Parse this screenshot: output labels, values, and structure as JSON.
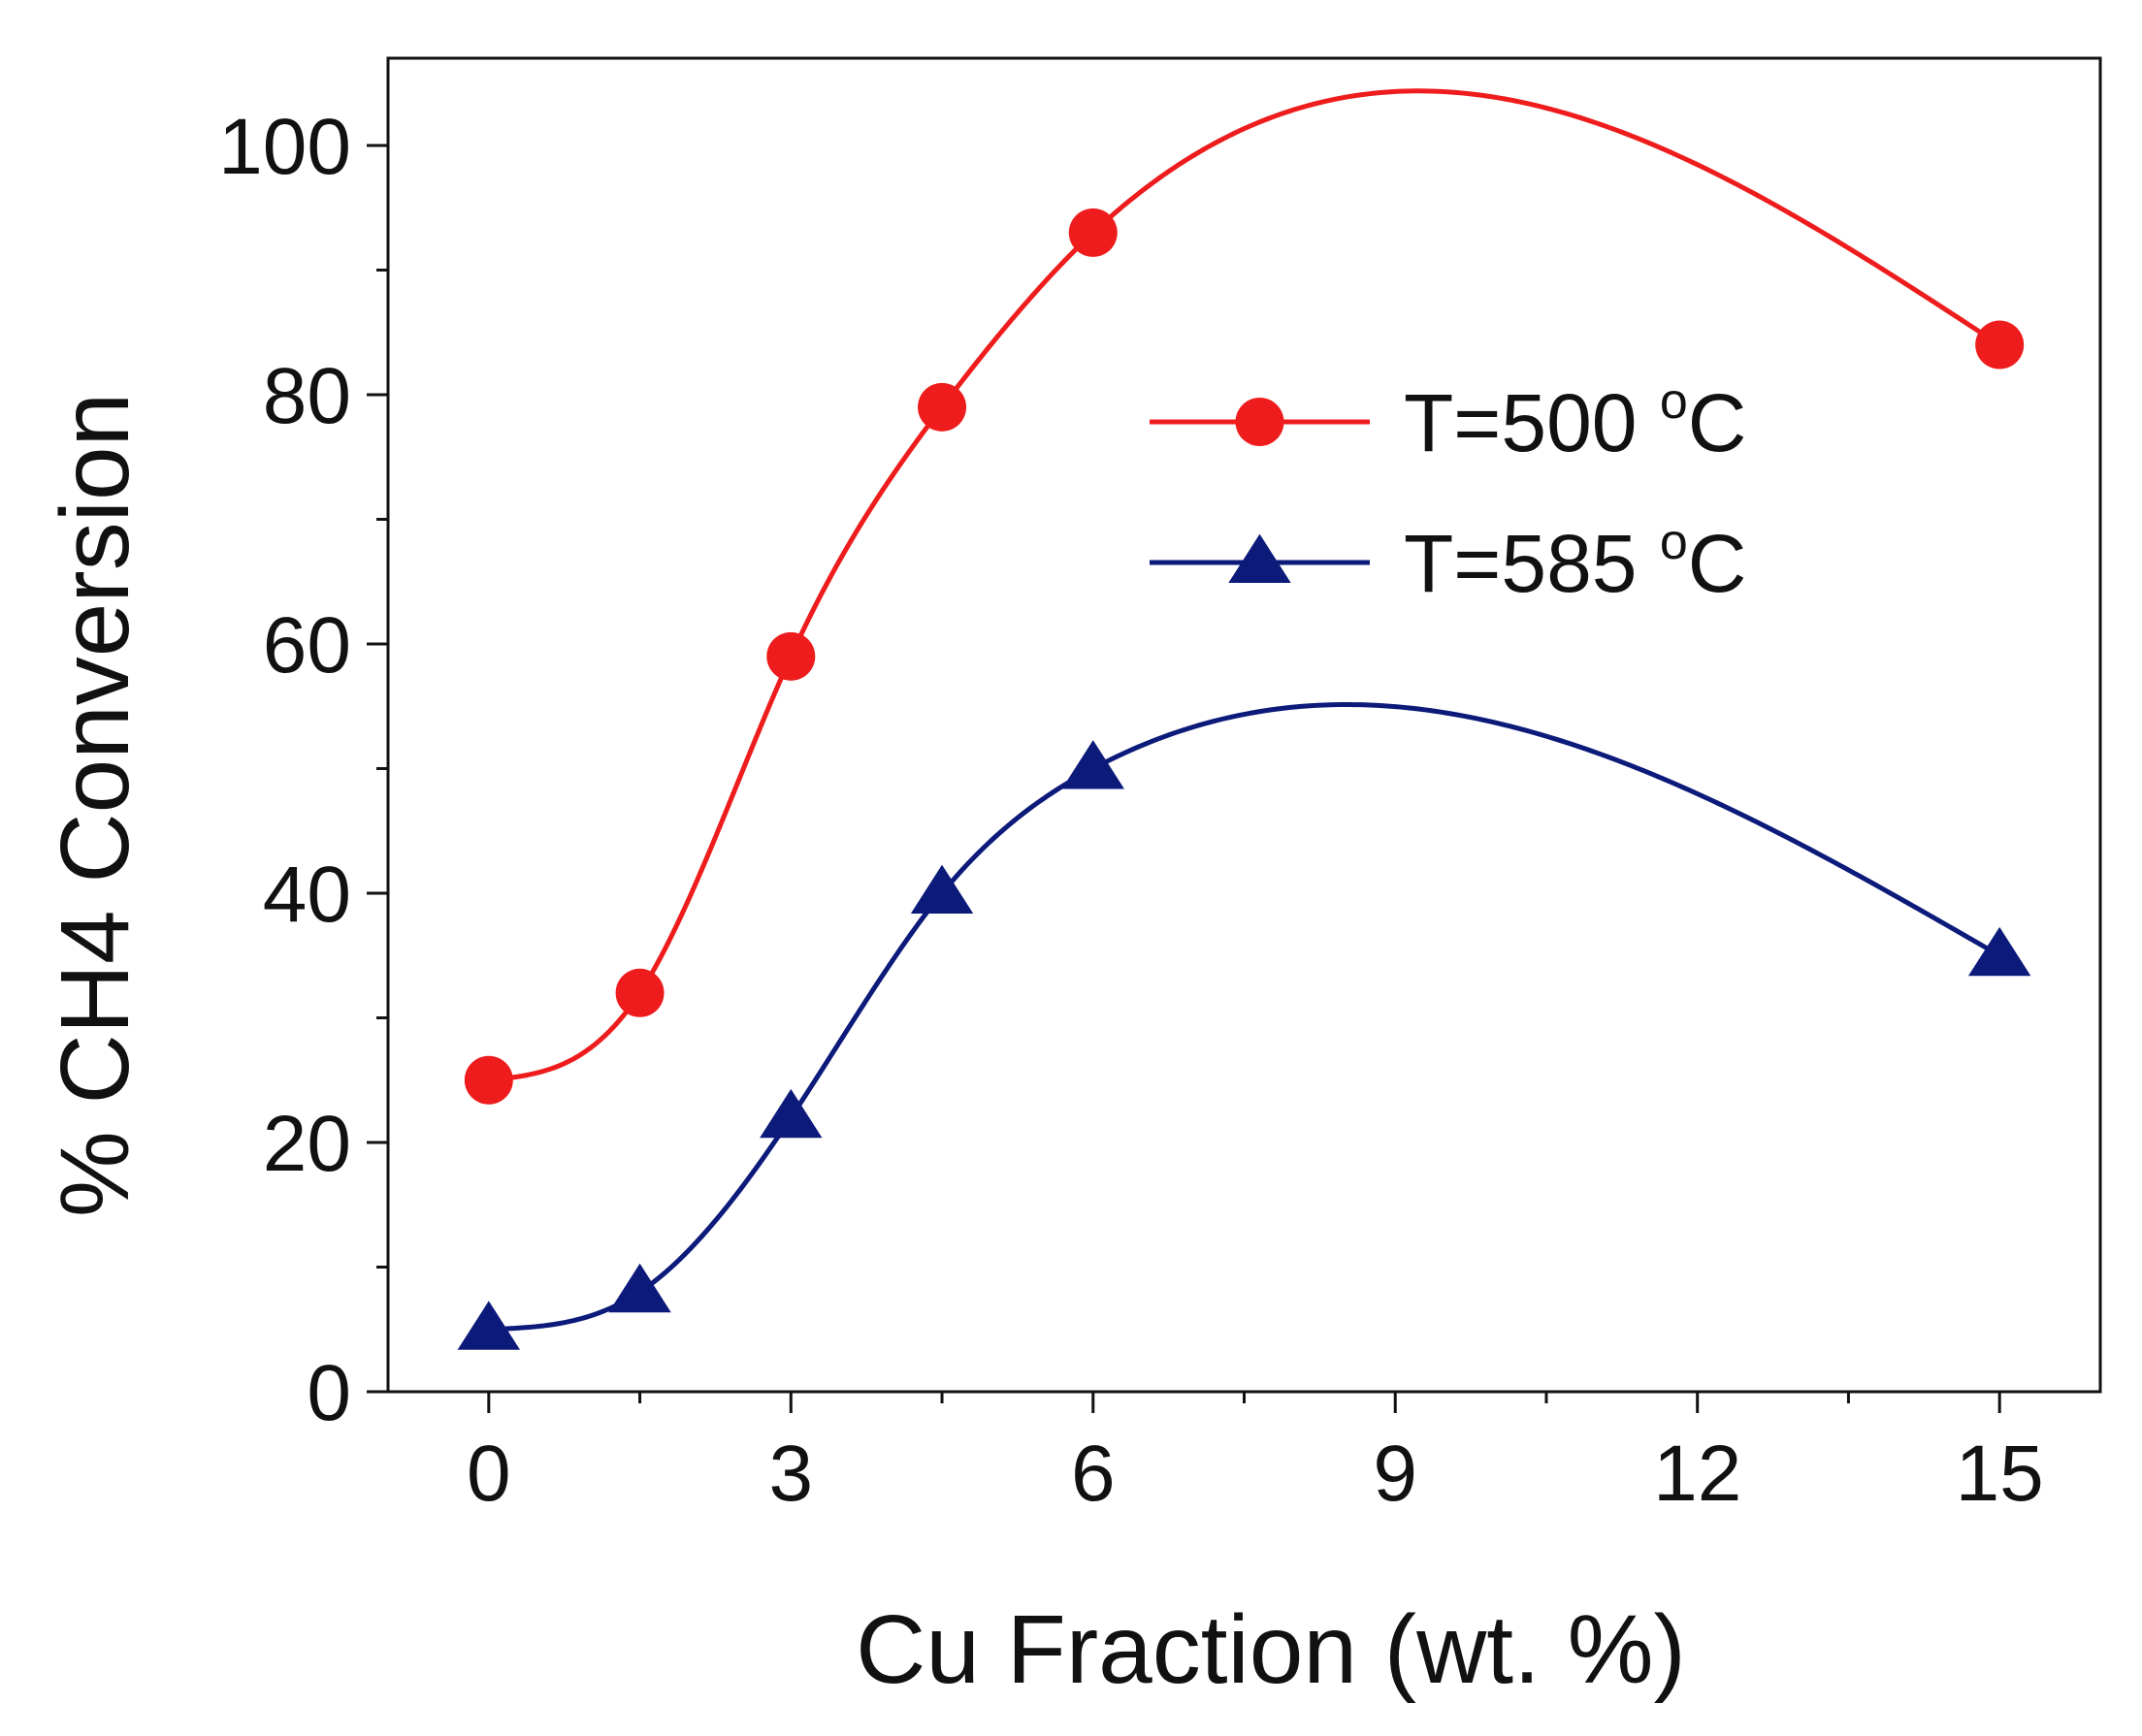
{
  "chart_data": {
    "type": "line",
    "title": "",
    "xlabel": "Cu Fraction (wt. %)",
    "ylabel": "% CH4 Conversion",
    "xlim": [
      -1,
      16
    ],
    "ylim": [
      0,
      107
    ],
    "x_ticks": [
      0,
      3,
      6,
      9,
      12,
      15
    ],
    "x_minor_ticks": [
      1.5,
      4.5,
      7.5,
      10.5,
      13.5
    ],
    "y_ticks": [
      0,
      20,
      40,
      60,
      80,
      100
    ],
    "y_minor_ticks": [
      10,
      30,
      50,
      70,
      90
    ],
    "grid": false,
    "legend_position": "upper-right",
    "series": [
      {
        "name": "T=500 °C",
        "label_prefix": "T=500 ",
        "label_degree": "o",
        "label_unit": "C",
        "marker": "circle",
        "color": "#ee1c1c",
        "x": [
          0,
          1.5,
          3,
          4.5,
          6,
          15
        ],
        "y": [
          25,
          32,
          59,
          79,
          93,
          84
        ]
      },
      {
        "name": "T=585 °C",
        "label_prefix": "T=585 ",
        "label_degree": "o",
        "label_unit": "C",
        "marker": "triangle",
        "color": "#0c1a7a",
        "x": [
          0,
          1.5,
          3,
          4.5,
          6,
          15
        ],
        "y": [
          5,
          8,
          22,
          40,
          50,
          35
        ]
      }
    ]
  }
}
